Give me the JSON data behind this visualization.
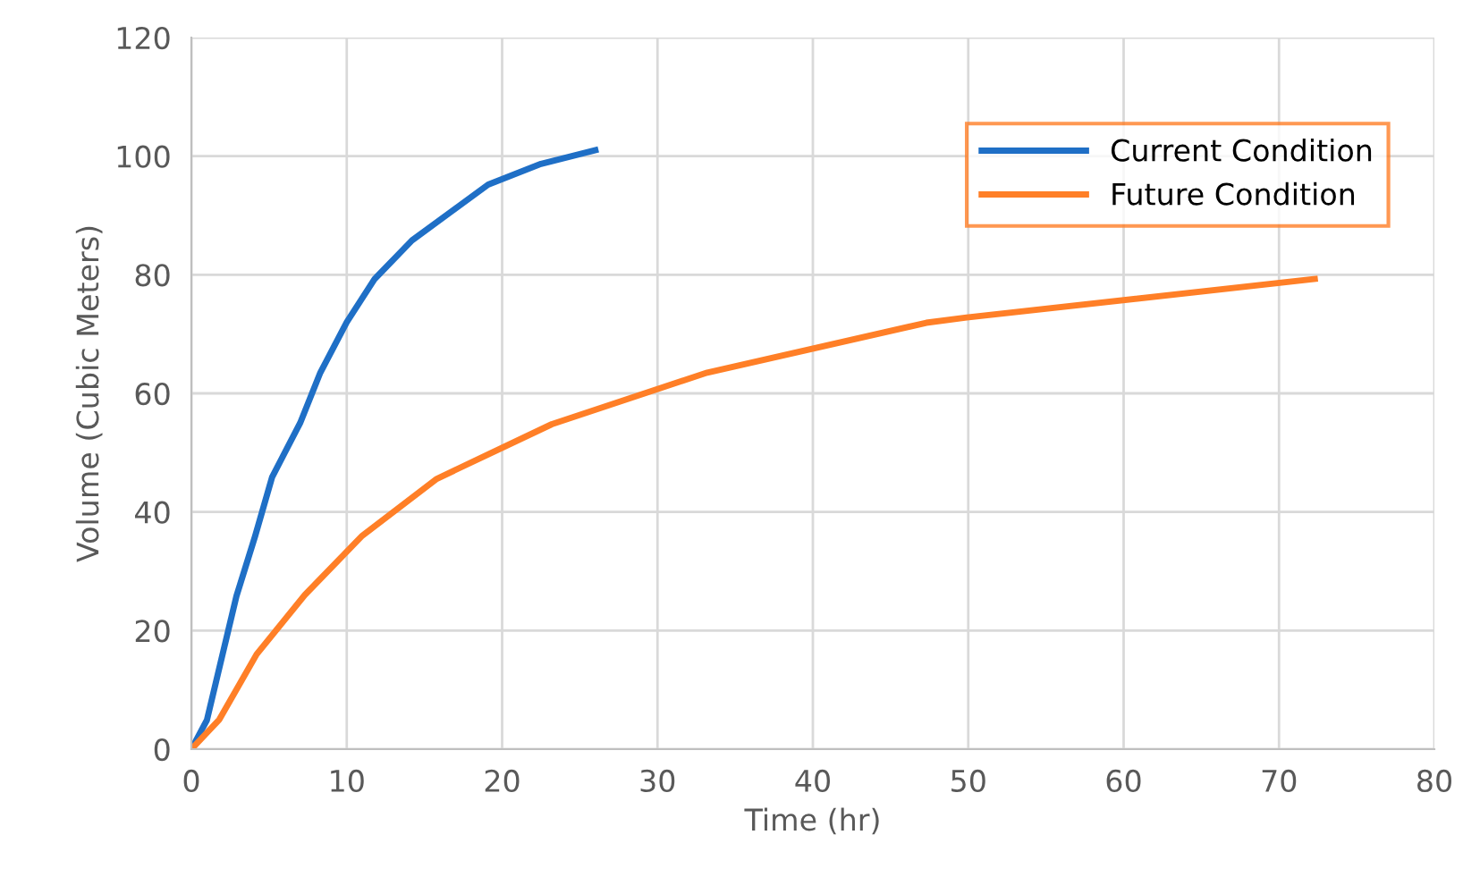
{
  "chart_data": {
    "type": "line",
    "xlabel": "Time (hr)",
    "ylabel": "Volume (Cubic Meters)",
    "xlim": [
      0,
      80
    ],
    "xticks": [
      0,
      10,
      20,
      30,
      40,
      50,
      60,
      70,
      80
    ],
    "ylim": [
      0,
      120
    ],
    "yticks": [
      0,
      20,
      40,
      60,
      80,
      100,
      120
    ],
    "grid": true,
    "legend": "top right",
    "marker": "none",
    "line_style": "solid",
    "series": [
      {
        "name": "Current Condition",
        "color": "#1f6fc6",
        "x": [
          0,
          1.0,
          2.9,
          4.1,
          5.2,
          7.0,
          8.3,
          10,
          11.8,
          14.2,
          19.1,
          22.5,
          26.0
        ],
        "values": [
          0,
          4.9,
          25.8,
          35.9,
          45.9,
          55,
          63.5,
          72,
          79.3,
          85.8,
          95.2,
          98.7,
          101
        ]
      },
      {
        "name": "Future Condition",
        "color": "#ff7f27",
        "x": [
          0,
          1.8,
          4.2,
          7.3,
          11.0,
          15.8,
          23.2,
          33.2,
          47.3,
          49.9,
          72.3
        ],
        "values": [
          0,
          5,
          16,
          26,
          36,
          45.6,
          54.8,
          63.5,
          71.9,
          72.8,
          79.3
        ]
      }
    ]
  }
}
